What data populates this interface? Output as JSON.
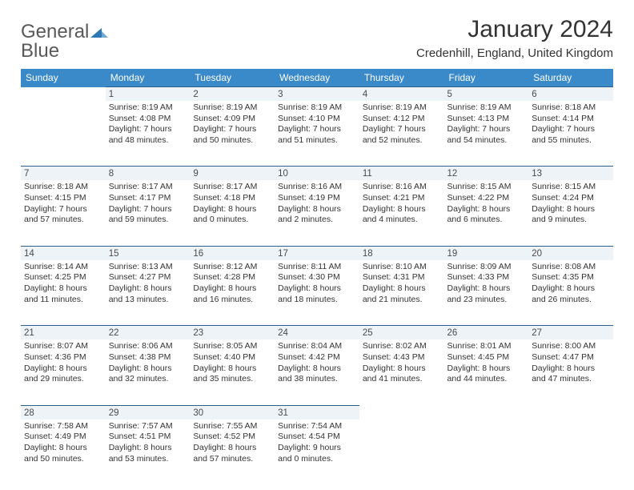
{
  "logo": {
    "word1": "General",
    "word2": "Blue"
  },
  "title": "January 2024",
  "location": "Credenhill, England, United Kingdom",
  "colors": {
    "header_bg": "#3a89c9",
    "header_text": "#ffffff",
    "daynum_bg": "#eef3f7",
    "daynum_border": "#2e5f8a",
    "logo_gray": "#595959",
    "logo_blue": "#2f77b7"
  },
  "weekdays": [
    "Sunday",
    "Monday",
    "Tuesday",
    "Wednesday",
    "Thursday",
    "Friday",
    "Saturday"
  ],
  "weeks": [
    [
      null,
      {
        "n": "1",
        "sr": "8:19 AM",
        "ss": "4:08 PM",
        "d1": "Daylight: 7 hours",
        "d2": "and 48 minutes."
      },
      {
        "n": "2",
        "sr": "8:19 AM",
        "ss": "4:09 PM",
        "d1": "Daylight: 7 hours",
        "d2": "and 50 minutes."
      },
      {
        "n": "3",
        "sr": "8:19 AM",
        "ss": "4:10 PM",
        "d1": "Daylight: 7 hours",
        "d2": "and 51 minutes."
      },
      {
        "n": "4",
        "sr": "8:19 AM",
        "ss": "4:12 PM",
        "d1": "Daylight: 7 hours",
        "d2": "and 52 minutes."
      },
      {
        "n": "5",
        "sr": "8:19 AM",
        "ss": "4:13 PM",
        "d1": "Daylight: 7 hours",
        "d2": "and 54 minutes."
      },
      {
        "n": "6",
        "sr": "8:18 AM",
        "ss": "4:14 PM",
        "d1": "Daylight: 7 hours",
        "d2": "and 55 minutes."
      }
    ],
    [
      {
        "n": "7",
        "sr": "8:18 AM",
        "ss": "4:15 PM",
        "d1": "Daylight: 7 hours",
        "d2": "and 57 minutes."
      },
      {
        "n": "8",
        "sr": "8:17 AM",
        "ss": "4:17 PM",
        "d1": "Daylight: 7 hours",
        "d2": "and 59 minutes."
      },
      {
        "n": "9",
        "sr": "8:17 AM",
        "ss": "4:18 PM",
        "d1": "Daylight: 8 hours",
        "d2": "and 0 minutes."
      },
      {
        "n": "10",
        "sr": "8:16 AM",
        "ss": "4:19 PM",
        "d1": "Daylight: 8 hours",
        "d2": "and 2 minutes."
      },
      {
        "n": "11",
        "sr": "8:16 AM",
        "ss": "4:21 PM",
        "d1": "Daylight: 8 hours",
        "d2": "and 4 minutes."
      },
      {
        "n": "12",
        "sr": "8:15 AM",
        "ss": "4:22 PM",
        "d1": "Daylight: 8 hours",
        "d2": "and 6 minutes."
      },
      {
        "n": "13",
        "sr": "8:15 AM",
        "ss": "4:24 PM",
        "d1": "Daylight: 8 hours",
        "d2": "and 9 minutes."
      }
    ],
    [
      {
        "n": "14",
        "sr": "8:14 AM",
        "ss": "4:25 PM",
        "d1": "Daylight: 8 hours",
        "d2": "and 11 minutes."
      },
      {
        "n": "15",
        "sr": "8:13 AM",
        "ss": "4:27 PM",
        "d1": "Daylight: 8 hours",
        "d2": "and 13 minutes."
      },
      {
        "n": "16",
        "sr": "8:12 AM",
        "ss": "4:28 PM",
        "d1": "Daylight: 8 hours",
        "d2": "and 16 minutes."
      },
      {
        "n": "17",
        "sr": "8:11 AM",
        "ss": "4:30 PM",
        "d1": "Daylight: 8 hours",
        "d2": "and 18 minutes."
      },
      {
        "n": "18",
        "sr": "8:10 AM",
        "ss": "4:31 PM",
        "d1": "Daylight: 8 hours",
        "d2": "and 21 minutes."
      },
      {
        "n": "19",
        "sr": "8:09 AM",
        "ss": "4:33 PM",
        "d1": "Daylight: 8 hours",
        "d2": "and 23 minutes."
      },
      {
        "n": "20",
        "sr": "8:08 AM",
        "ss": "4:35 PM",
        "d1": "Daylight: 8 hours",
        "d2": "and 26 minutes."
      }
    ],
    [
      {
        "n": "21",
        "sr": "8:07 AM",
        "ss": "4:36 PM",
        "d1": "Daylight: 8 hours",
        "d2": "and 29 minutes."
      },
      {
        "n": "22",
        "sr": "8:06 AM",
        "ss": "4:38 PM",
        "d1": "Daylight: 8 hours",
        "d2": "and 32 minutes."
      },
      {
        "n": "23",
        "sr": "8:05 AM",
        "ss": "4:40 PM",
        "d1": "Daylight: 8 hours",
        "d2": "and 35 minutes."
      },
      {
        "n": "24",
        "sr": "8:04 AM",
        "ss": "4:42 PM",
        "d1": "Daylight: 8 hours",
        "d2": "and 38 minutes."
      },
      {
        "n": "25",
        "sr": "8:02 AM",
        "ss": "4:43 PM",
        "d1": "Daylight: 8 hours",
        "d2": "and 41 minutes."
      },
      {
        "n": "26",
        "sr": "8:01 AM",
        "ss": "4:45 PM",
        "d1": "Daylight: 8 hours",
        "d2": "and 44 minutes."
      },
      {
        "n": "27",
        "sr": "8:00 AM",
        "ss": "4:47 PM",
        "d1": "Daylight: 8 hours",
        "d2": "and 47 minutes."
      }
    ],
    [
      {
        "n": "28",
        "sr": "7:58 AM",
        "ss": "4:49 PM",
        "d1": "Daylight: 8 hours",
        "d2": "and 50 minutes."
      },
      {
        "n": "29",
        "sr": "7:57 AM",
        "ss": "4:51 PM",
        "d1": "Daylight: 8 hours",
        "d2": "and 53 minutes."
      },
      {
        "n": "30",
        "sr": "7:55 AM",
        "ss": "4:52 PM",
        "d1": "Daylight: 8 hours",
        "d2": "and 57 minutes."
      },
      {
        "n": "31",
        "sr": "7:54 AM",
        "ss": "4:54 PM",
        "d1": "Daylight: 9 hours",
        "d2": "and 0 minutes."
      },
      null,
      null,
      null
    ]
  ],
  "labels": {
    "sunrise_prefix": "Sunrise: ",
    "sunset_prefix": "Sunset: "
  }
}
